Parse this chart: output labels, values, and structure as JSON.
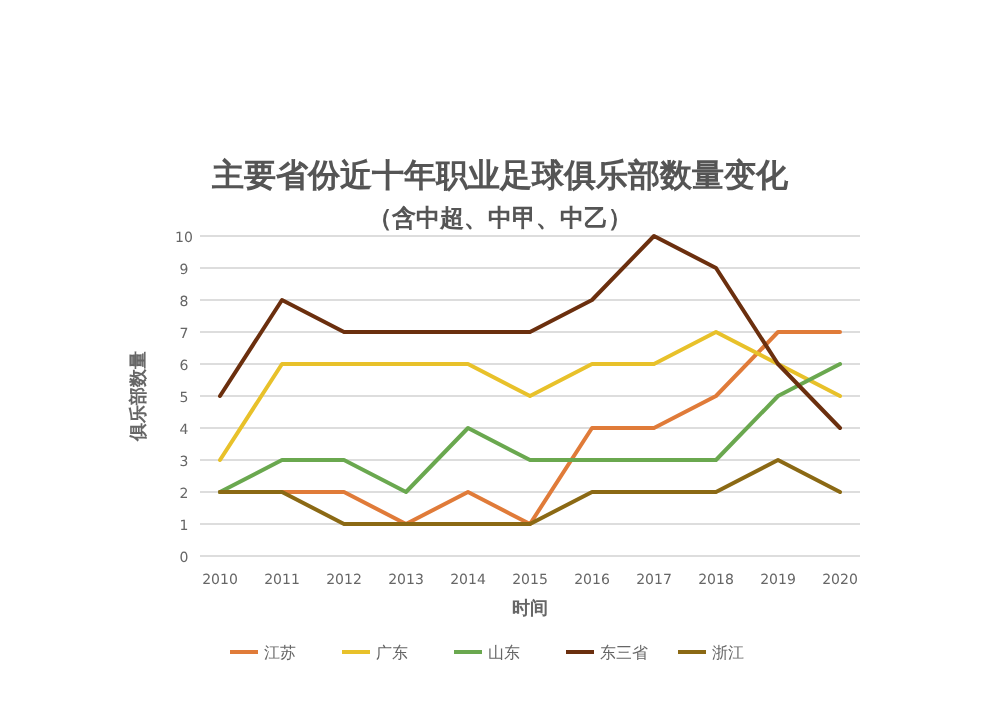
{
  "chart_data": {
    "type": "line",
    "title": "主要省份近十年职业足球俱乐部数量变化",
    "subtitle": "（含中超、中甲、中乙）",
    "xlabel": "时间",
    "ylabel": "俱乐部数量",
    "categories": [
      "2010",
      "2011",
      "2012",
      "2013",
      "2014",
      "2015",
      "2016",
      "2017",
      "2018",
      "2019",
      "2020"
    ],
    "ylim": [
      0,
      10
    ],
    "yticks": [
      0,
      1,
      2,
      3,
      4,
      5,
      6,
      7,
      8,
      9,
      10
    ],
    "grid": "y",
    "legend": "bottom",
    "marker": "none",
    "line_style": "solid",
    "series": [
      {
        "name": "江苏",
        "color": "#e07b39",
        "values": [
          2,
          2,
          2,
          1,
          2,
          1,
          4,
          4,
          5,
          7,
          7
        ]
      },
      {
        "name": "广东",
        "color": "#e8c12a",
        "values": [
          3,
          6,
          6,
          6,
          6,
          5,
          6,
          6,
          7,
          6,
          5
        ]
      },
      {
        "name": "山东",
        "color": "#6aa84f",
        "values": [
          2,
          3,
          3,
          2,
          4,
          3,
          3,
          3,
          3,
          5,
          6
        ]
      },
      {
        "name": "东三省",
        "color": "#6b2f0e",
        "values": [
          5,
          8,
          7,
          7,
          7,
          7,
          8,
          10,
          9,
          6,
          4
        ]
      },
      {
        "name": "浙江",
        "color": "#8b6914",
        "values": [
          2,
          2,
          1,
          1,
          1,
          1,
          2,
          2,
          2,
          3,
          2
        ]
      }
    ]
  }
}
